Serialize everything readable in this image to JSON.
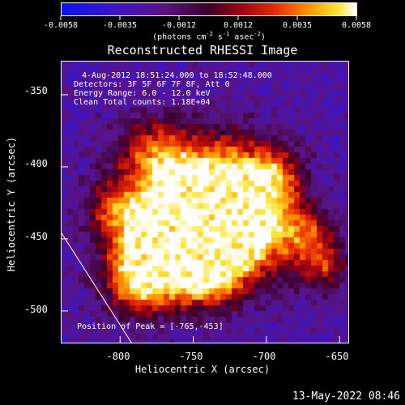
{
  "colorbar": {
    "labels": [
      "-0.0058",
      "-0.0035",
      "-0.0012",
      "0.0012",
      "0.0035",
      "0.0058"
    ],
    "units_text": "(photons cm",
    "units_sup1": "-2",
    "units_mid": " s",
    "units_sup2": "-1",
    "units_end": " asec",
    "units_sup3": "-2",
    "units_close": ")"
  },
  "chart_data": {
    "type": "heatmap",
    "title": "Reconstructed RHESSI Image",
    "xlabel": "Heliocentric X (arcsec)",
    "ylabel": "Heliocentric Y (arcsec)",
    "xlim": [
      -840,
      -644
    ],
    "ylim": [
      -522,
      -327
    ],
    "xticks": [
      -800,
      -750,
      -700,
      -650
    ],
    "yticks": [
      -350,
      -400,
      -450,
      -500
    ],
    "color_range": [
      -0.0058,
      0.0058
    ],
    "peak_position": [
      -765,
      -453
    ],
    "limb_line": [
      [
        -840,
        -446
      ],
      [
        -791,
        -524
      ]
    ]
  },
  "info": {
    "line1": "4-Aug-2012 18:51:24.000 to 18:52:48.000",
    "line2": "Detectors: 3F 5F 6F 7F 8F, Att 0",
    "line3": "Energy Range: 6.0 - 12.0 keV",
    "line4": "Clean    Total counts: 1.18E+04"
  },
  "peak_text": "Position of Peak = [-765,-453]",
  "date_stamp": "13-May-2022 08:46"
}
